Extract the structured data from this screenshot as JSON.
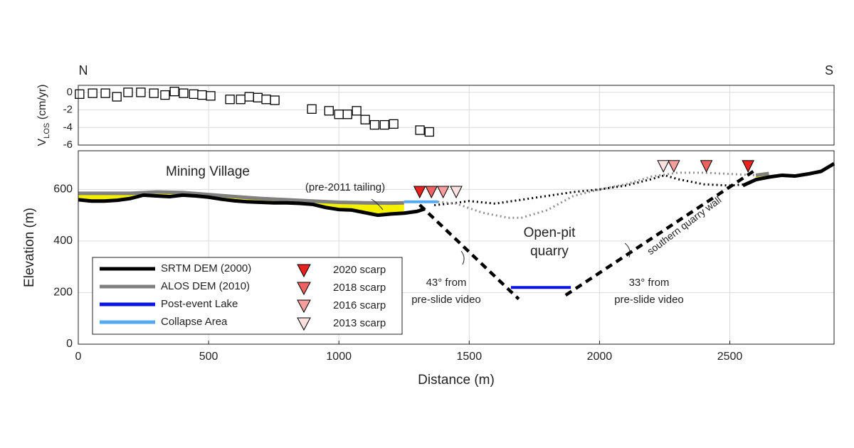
{
  "chart_data": [
    {
      "type": "scatter",
      "north_label": "N",
      "south_label": "S",
      "y_label": [
        "V",
        "LOS",
        " (cm/yr)"
      ],
      "xlim": [
        0,
        2900
      ],
      "ylim": [
        -6,
        0.8
      ],
      "yticks": [
        0,
        -2,
        -4,
        -6
      ],
      "x": [
        5,
        55,
        104,
        148,
        191,
        240,
        290,
        333,
        369,
        404,
        443,
        475,
        508,
        582,
        623,
        656,
        689,
        721,
        754,
        896,
        962,
        1000,
        1033,
        1068,
        1101,
        1137,
        1175,
        1210,
        1311,
        1347
      ],
      "values": [
        -0.2,
        -0.1,
        -0.1,
        -0.5,
        0,
        0,
        -0.1,
        -0.3,
        0.1,
        -0.1,
        -0.2,
        -0.3,
        -0.4,
        -0.8,
        -0.8,
        -0.5,
        -0.6,
        -0.8,
        -0.9,
        -1.9,
        -2.1,
        -2.5,
        -2.5,
        -2.1,
        -3.1,
        -3.7,
        -3.7,
        -3.6,
        -4.3,
        -4.5
      ]
    },
    {
      "type": "line",
      "x_label": "Distance (m)",
      "y_label": "Elevation (m)",
      "xlim": [
        0,
        2900
      ],
      "ylim": [
        0,
        750
      ],
      "xticks": [
        0,
        500,
        1000,
        1500,
        2000,
        2500
      ],
      "yticks": [
        0,
        200,
        400,
        600
      ],
      "grid": true,
      "series": [
        {
          "name": "SRTM DEM (2000)",
          "color": "#000000",
          "x": [
            0,
            50,
            100,
            150,
            200,
            250,
            300,
            350,
            400,
            450,
            500,
            550,
            600,
            650,
            700,
            750,
            800,
            850,
            900,
            950,
            1000,
            1050,
            1100,
            1150,
            1200,
            1250,
            1300,
            1330,
            2500,
            2550,
            2600,
            2650,
            2700,
            2750,
            2800,
            2850,
            2900
          ],
          "values": [
            560,
            555,
            555,
            558,
            565,
            578,
            575,
            572,
            578,
            575,
            570,
            562,
            556,
            552,
            550,
            548,
            548,
            546,
            542,
            530,
            522,
            520,
            510,
            500,
            505,
            508,
            515,
            525,
            null,
            615,
            638,
            648,
            655,
            652,
            660,
            670,
            700
          ]
        },
        {
          "name": "ALOS DEM (2010)",
          "color": "#808080",
          "x": [
            0,
            100,
            200,
            300,
            400,
            500,
            600,
            700,
            800,
            900,
            1000,
            1100,
            1200,
            1250,
            2550,
            2600,
            2650
          ],
          "values": [
            585,
            585,
            585,
            590,
            588,
            580,
            572,
            565,
            560,
            555,
            550,
            548,
            547,
            548,
            null,
            655,
            662
          ]
        },
        {
          "name": "Post-event Lake",
          "color": "#0a14e0",
          "x": [
            1660,
            1890
          ],
          "values": [
            220,
            220
          ]
        },
        {
          "name": "Collapse Area",
          "color": "#55aaee",
          "x": [
            1250,
            1380
          ],
          "values": [
            552,
            552
          ]
        }
      ],
      "lines": [
        {
          "color": "#000000",
          "dash": "dot",
          "x": [
            1366,
            1450,
            1500,
            1600,
            1700,
            1800,
            1900,
            2000,
            2100,
            2200,
            2250,
            2300,
            2400,
            2500,
            2560
          ],
          "values": [
            539,
            548,
            555,
            545,
            560,
            575,
            590,
            600,
            615,
            640,
            655,
            640,
            620,
            615,
            620
          ]
        },
        {
          "color": "#909090",
          "dash": "dot",
          "x": [
            1380,
            1450,
            1550,
            1650,
            1700,
            1800,
            1900,
            2000,
            2100,
            2200,
            2300,
            2400,
            2500,
            2600
          ],
          "values": [
            552,
            545,
            510,
            490,
            490,
            520,
            575,
            600,
            620,
            650,
            665,
            665,
            660,
            655
          ]
        },
        {
          "color": "#000000",
          "dash": "dash",
          "x": [
            1310,
            1690
          ],
          "values": [
            540,
            175
          ]
        },
        {
          "color": "#000000",
          "dash": "dash",
          "x": [
            1870,
            2590
          ],
          "values": [
            190,
            670
          ]
        }
      ],
      "markers": [
        {
          "name": "2020 scarp",
          "color": "#e8221f",
          "x": [
            1310,
            2570
          ],
          "values": [
            590,
            690
          ]
        },
        {
          "name": "2018 scarp",
          "color": "#ef6262",
          "x": [
            1355,
            2410
          ],
          "values": [
            590,
            690
          ]
        },
        {
          "name": "2016 scarp",
          "color": "#f59c9c",
          "x": [
            1400,
            2285
          ],
          "values": [
            590,
            690
          ]
        },
        {
          "name": "2013 scarp",
          "color": "#fbe0e0",
          "x": [
            1450,
            2245
          ],
          "values": [
            590,
            690
          ]
        }
      ],
      "annotations": [
        {
          "text": [
            "Mining Village"
          ]
        },
        {
          "text": [
            "(pre-2011 tailing)"
          ]
        },
        {
          "text": [
            "Open-pit",
            "quarry"
          ]
        },
        {
          "text": [
            "43° from",
            "pre-slide video"
          ]
        },
        {
          "text": [
            "33° from",
            "pre-slide video"
          ]
        },
        {
          "text": [
            "southern quarry wall"
          ]
        }
      ]
    }
  ]
}
